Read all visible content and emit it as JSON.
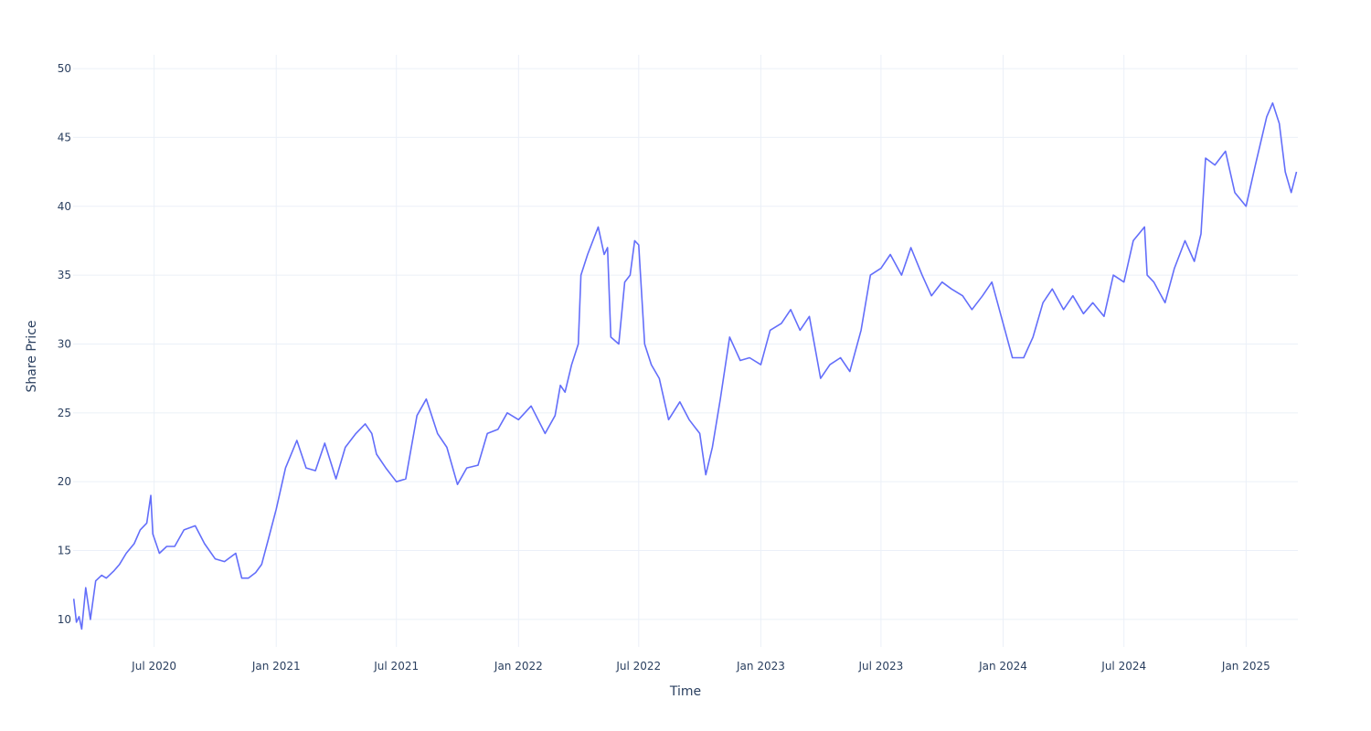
{
  "chart_data": {
    "type": "line",
    "xlabel": "Time",
    "ylabel": "Share Price",
    "x_range": [
      "2020-03-01",
      "2025-03-20"
    ],
    "ylim": [
      8,
      51
    ],
    "grid": true,
    "legend": "none",
    "colors": {
      "line": "#636efa",
      "grid": "#ebf0f8",
      "text": "#2a3f5f",
      "background": "#ffffff"
    },
    "x_ticks": [
      {
        "date": "2020-07-01",
        "label": "Jul 2020"
      },
      {
        "date": "2021-01-01",
        "label": "Jan 2021"
      },
      {
        "date": "2021-07-01",
        "label": "Jul 2021"
      },
      {
        "date": "2022-01-01",
        "label": "Jan 2022"
      },
      {
        "date": "2022-07-01",
        "label": "Jul 2022"
      },
      {
        "date": "2023-01-01",
        "label": "Jan 2023"
      },
      {
        "date": "2023-07-01",
        "label": "Jul 2023"
      },
      {
        "date": "2024-01-01",
        "label": "Jan 2024"
      },
      {
        "date": "2024-07-01",
        "label": "Jul 2024"
      },
      {
        "date": "2025-01-01",
        "label": "Jan 2025"
      }
    ],
    "y_ticks": [
      {
        "value": 10,
        "label": "10"
      },
      {
        "value": 15,
        "label": "15"
      },
      {
        "value": 20,
        "label": "20"
      },
      {
        "value": 25,
        "label": "25"
      },
      {
        "value": 30,
        "label": "30"
      },
      {
        "value": 35,
        "label": "35"
      },
      {
        "value": 40,
        "label": "40"
      },
      {
        "value": 45,
        "label": "45"
      },
      {
        "value": 50,
        "label": "50"
      }
    ],
    "series": [
      {
        "x": [
          "2020-03-02",
          "2020-03-06",
          "2020-03-10",
          "2020-03-14",
          "2020-03-20",
          "2020-03-27",
          "2020-04-04",
          "2020-04-13",
          "2020-04-20",
          "2020-05-01",
          "2020-05-10",
          "2020-05-20",
          "2020-06-01",
          "2020-06-10",
          "2020-06-20",
          "2020-06-26",
          "2020-06-29",
          "2020-07-02",
          "2020-07-09",
          "2020-07-20",
          "2020-08-01",
          "2020-08-15",
          "2020-09-01",
          "2020-09-15",
          "2020-10-01",
          "2020-10-15",
          "2020-11-01",
          "2020-11-10",
          "2020-11-20",
          "2020-12-01",
          "2020-12-10",
          "2020-12-20",
          "2021-01-01",
          "2021-01-15",
          "2021-02-01",
          "2021-02-15",
          "2021-03-01",
          "2021-03-15",
          "2021-04-01",
          "2021-04-15",
          "2021-05-01",
          "2021-05-15",
          "2021-05-25",
          "2021-06-01",
          "2021-06-15",
          "2021-07-01",
          "2021-07-15",
          "2021-08-01",
          "2021-08-15",
          "2021-09-01",
          "2021-09-15",
          "2021-10-01",
          "2021-10-15",
          "2021-11-01",
          "2021-11-15",
          "2021-12-01",
          "2021-12-15",
          "2022-01-01",
          "2022-01-20",
          "2022-02-10",
          "2022-02-25",
          "2022-03-05",
          "2022-03-12",
          "2022-03-22",
          "2022-04-01",
          "2022-04-05",
          "2022-04-15",
          "2022-05-01",
          "2022-05-10",
          "2022-05-15",
          "2022-05-20",
          "2022-06-01",
          "2022-06-10",
          "2022-06-18",
          "2022-06-25",
          "2022-07-01",
          "2022-07-10",
          "2022-07-20",
          "2022-08-01",
          "2022-08-15",
          "2022-09-01",
          "2022-09-15",
          "2022-10-01",
          "2022-10-10",
          "2022-10-20",
          "2022-11-01",
          "2022-11-15",
          "2022-12-01",
          "2022-12-15",
          "2023-01-01",
          "2023-01-15",
          "2023-02-01",
          "2023-02-15",
          "2023-03-01",
          "2023-03-15",
          "2023-04-01",
          "2023-04-15",
          "2023-05-01",
          "2023-05-15",
          "2023-06-01",
          "2023-06-15",
          "2023-07-01",
          "2023-07-15",
          "2023-08-01",
          "2023-08-15",
          "2023-09-01",
          "2023-09-15",
          "2023-10-01",
          "2023-10-15",
          "2023-11-01",
          "2023-11-15",
          "2023-12-01",
          "2023-12-15",
          "2024-01-01",
          "2024-01-15",
          "2024-02-01",
          "2024-02-15",
          "2024-03-01",
          "2024-03-15",
          "2024-04-01",
          "2024-04-15",
          "2024-05-01",
          "2024-05-15",
          "2024-06-01",
          "2024-06-15",
          "2024-07-01",
          "2024-07-15",
          "2024-08-01",
          "2024-08-05",
          "2024-08-15",
          "2024-09-01",
          "2024-09-15",
          "2024-10-01",
          "2024-10-15",
          "2024-10-25",
          "2024-11-01",
          "2024-11-15",
          "2024-12-01",
          "2024-12-15",
          "2025-01-01",
          "2025-01-15",
          "2025-02-01",
          "2025-02-10",
          "2025-02-20",
          "2025-03-01",
          "2025-03-10",
          "2025-03-18"
        ],
        "y": [
          11.5,
          9.8,
          10.2,
          9.3,
          12.3,
          10.0,
          12.8,
          13.2,
          13.0,
          13.5,
          14.0,
          14.8,
          15.5,
          16.5,
          17.0,
          19.0,
          16.2,
          15.8,
          14.8,
          15.3,
          15.3,
          16.5,
          16.8,
          15.5,
          14.4,
          14.2,
          14.8,
          13.0,
          13.0,
          13.4,
          14.0,
          15.8,
          18.0,
          21.0,
          23.0,
          21.0,
          20.8,
          22.8,
          20.2,
          22.5,
          23.5,
          24.2,
          23.5,
          22.0,
          21.0,
          20.0,
          20.2,
          24.8,
          26.0,
          23.5,
          22.5,
          19.8,
          21.0,
          21.2,
          23.5,
          23.8,
          25.0,
          24.5,
          25.5,
          23.5,
          24.8,
          27.0,
          26.5,
          28.5,
          30.0,
          35.0,
          36.5,
          38.5,
          36.5,
          37.0,
          30.5,
          30.0,
          34.5,
          35.0,
          37.5,
          37.2,
          30.0,
          28.5,
          27.5,
          24.5,
          25.8,
          24.5,
          23.5,
          20.5,
          22.5,
          26.0,
          30.5,
          28.8,
          29.0,
          28.5,
          31.0,
          31.5,
          32.5,
          31.0,
          32.0,
          27.5,
          28.5,
          29.0,
          28.0,
          31.0,
          35.0,
          35.5,
          36.5,
          35.0,
          37.0,
          35.0,
          33.5,
          34.5,
          34.0,
          33.5,
          32.5,
          33.5,
          34.5,
          31.5,
          29.0,
          29.0,
          30.5,
          33.0,
          34.0,
          32.5,
          33.5,
          32.2,
          33.0,
          32.0,
          35.0,
          34.5,
          37.5,
          38.5,
          35.0,
          34.5,
          33.0,
          35.5,
          37.5,
          36.0,
          38.0,
          43.5,
          43.0,
          44.0,
          41.0,
          40.0,
          43.0,
          46.5,
          47.5,
          46.0,
          42.5,
          41.0,
          42.5
        ]
      }
    ]
  }
}
